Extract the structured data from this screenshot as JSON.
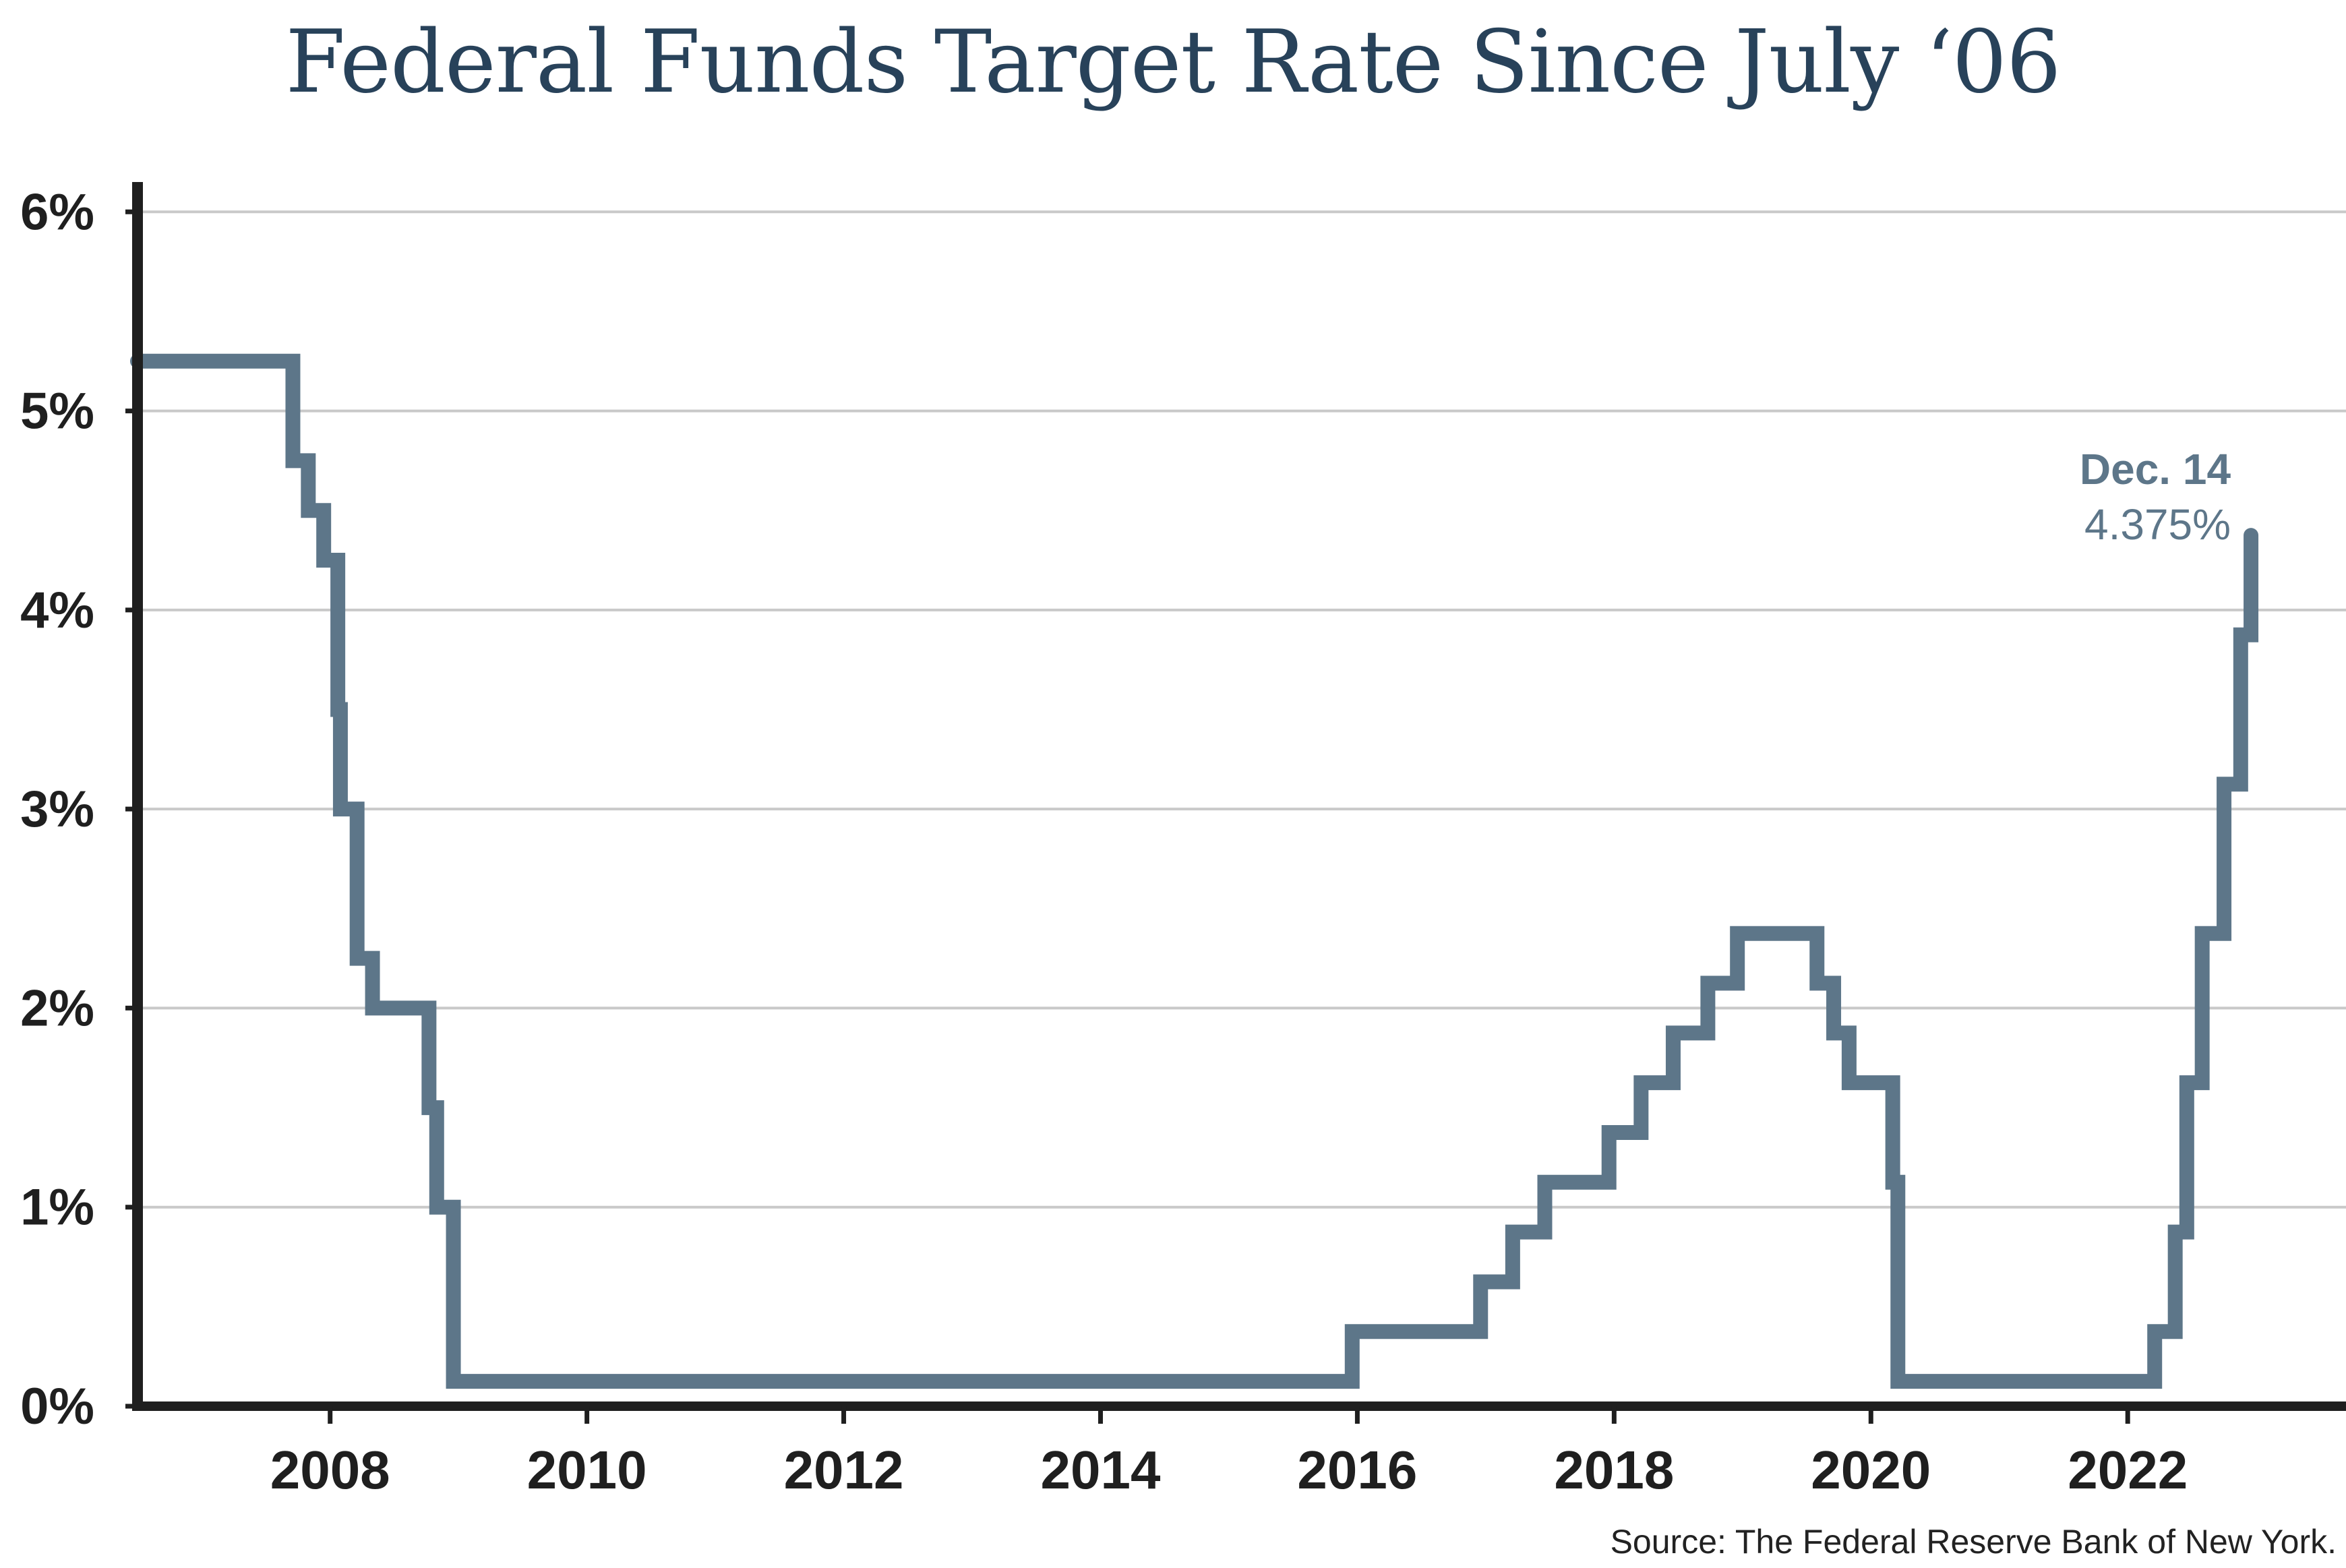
{
  "chart_data": {
    "type": "line",
    "step": true,
    "title": "Federal Funds Target Rate Since July ‘06",
    "xlabel": "",
    "ylabel": "",
    "xlim": [
      2006.5,
      2023.7
    ],
    "ylim": [
      0,
      6.15
    ],
    "y_ticks": [
      {
        "value": 0,
        "label": "0%"
      },
      {
        "value": 1,
        "label": "1%"
      },
      {
        "value": 2,
        "label": "2%"
      },
      {
        "value": 3,
        "label": "3%"
      },
      {
        "value": 4,
        "label": "4%"
      },
      {
        "value": 5,
        "label": "5%"
      },
      {
        "value": 6,
        "label": "6%"
      }
    ],
    "x_ticks": [
      {
        "value": 2008,
        "label": "2008"
      },
      {
        "value": 2010,
        "label": "2010"
      },
      {
        "value": 2012,
        "label": "2012"
      },
      {
        "value": 2014,
        "label": "2014"
      },
      {
        "value": 2016,
        "label": "2016"
      },
      {
        "value": 2018,
        "label": "2018"
      },
      {
        "value": 2020,
        "label": "2020"
      },
      {
        "value": 2022,
        "label": "2022"
      }
    ],
    "grid": "horizontal",
    "series": [
      {
        "name": "Federal Funds Target Rate",
        "color": "#5d7689",
        "points": [
          {
            "x": 2006.5,
            "y": 5.25
          },
          {
            "x": 2007.71,
            "y": 4.75
          },
          {
            "x": 2007.83,
            "y": 4.5
          },
          {
            "x": 2007.95,
            "y": 4.25
          },
          {
            "x": 2008.06,
            "y": 3.5
          },
          {
            "x": 2008.08,
            "y": 3.0
          },
          {
            "x": 2008.21,
            "y": 2.25
          },
          {
            "x": 2008.33,
            "y": 2.0
          },
          {
            "x": 2008.77,
            "y": 1.5
          },
          {
            "x": 2008.83,
            "y": 1.0
          },
          {
            "x": 2008.96,
            "y": 0.125
          },
          {
            "x": 2015.96,
            "y": 0.375
          },
          {
            "x": 2016.96,
            "y": 0.625
          },
          {
            "x": 2017.21,
            "y": 0.875
          },
          {
            "x": 2017.46,
            "y": 1.125
          },
          {
            "x": 2017.96,
            "y": 1.375
          },
          {
            "x": 2018.21,
            "y": 1.625
          },
          {
            "x": 2018.46,
            "y": 1.875
          },
          {
            "x": 2018.73,
            "y": 2.125
          },
          {
            "x": 2018.96,
            "y": 2.375
          },
          {
            "x": 2019.58,
            "y": 2.125
          },
          {
            "x": 2019.71,
            "y": 1.875
          },
          {
            "x": 2019.83,
            "y": 1.625
          },
          {
            "x": 2020.17,
            "y": 1.125
          },
          {
            "x": 2020.21,
            "y": 0.125
          },
          {
            "x": 2022.21,
            "y": 0.375
          },
          {
            "x": 2022.37,
            "y": 0.875
          },
          {
            "x": 2022.46,
            "y": 1.625
          },
          {
            "x": 2022.58,
            "y": 2.375
          },
          {
            "x": 2022.75,
            "y": 3.125
          },
          {
            "x": 2022.88,
            "y": 3.875
          },
          {
            "x": 2022.96,
            "y": 4.375
          }
        ]
      }
    ],
    "annotation": {
      "date": "Dec. 14",
      "value": "4.375%",
      "color": "#5d7689",
      "anchor_x": 2022.96,
      "anchor_y": 4.375
    }
  },
  "source": "Source:  The Federal Reserve Bank of New York."
}
